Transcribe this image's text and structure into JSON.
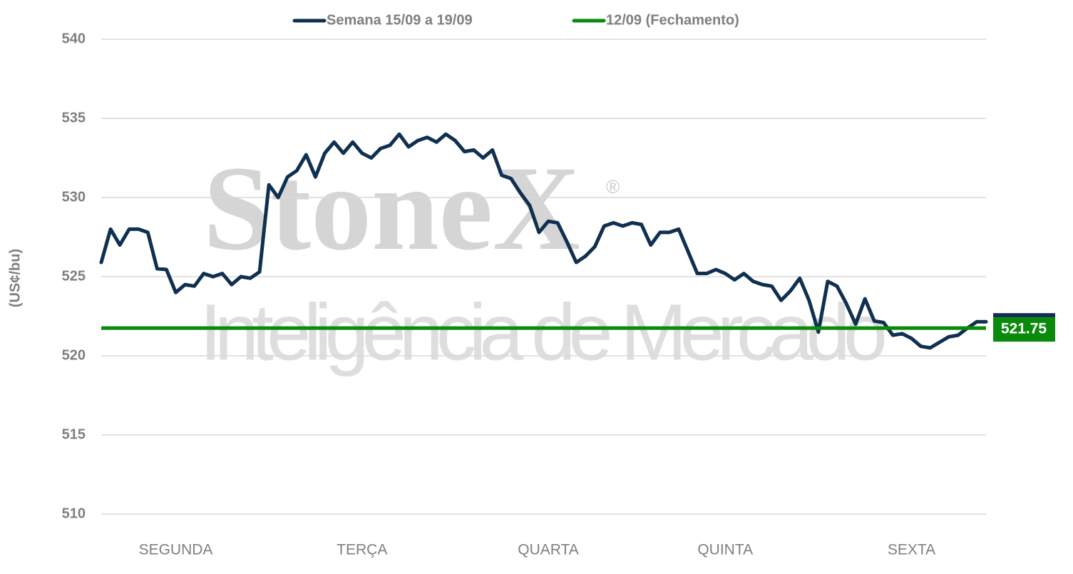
{
  "chart_data": {
    "type": "line",
    "y_label": "(US¢/bu)",
    "watermark": {
      "brand": "StoneX",
      "mark": "®",
      "tagline": "Inteligência de Mercado"
    },
    "categories": [
      null,
      null,
      null,
      null,
      null,
      null,
      null,
      null,
      "SEGUNDA",
      null,
      null,
      null,
      null,
      null,
      null,
      null,
      null,
      null,
      null,
      null,
      null,
      null,
      null,
      null,
      null,
      null,
      null,
      null,
      "TERÇA",
      null,
      null,
      null,
      null,
      null,
      null,
      null,
      null,
      null,
      null,
      null,
      null,
      null,
      null,
      null,
      null,
      null,
      null,
      null,
      "QUARTA",
      null,
      null,
      null,
      null,
      null,
      null,
      null,
      null,
      null,
      null,
      null,
      null,
      null,
      null,
      null,
      null,
      null,
      null,
      "QUINTA",
      null,
      null,
      null,
      null,
      null,
      null,
      null,
      null,
      null,
      null,
      null,
      null,
      null,
      null,
      null,
      null,
      null,
      null,
      null,
      "SEXTA",
      null,
      null,
      null,
      null,
      null,
      null,
      null,
      null
    ],
    "series": [
      {
        "name": "Semana 15/09 a 19/09",
        "color": "#0f3050",
        "values": [
          525.9,
          528.0,
          527.0,
          528.0,
          528.0,
          527.8,
          525.5,
          525.45,
          524.0,
          524.5,
          524.4,
          525.2,
          525.0,
          525.2,
          524.5,
          525.0,
          524.9,
          525.3,
          530.8,
          530.0,
          531.3,
          531.7,
          532.7,
          531.3,
          532.8,
          533.5,
          532.8,
          533.5,
          532.8,
          532.5,
          533.1,
          533.3,
          534.0,
          533.2,
          533.6,
          533.8,
          533.5,
          534.0,
          533.6,
          532.9,
          533.0,
          532.5,
          533.0,
          531.4,
          531.2,
          530.3,
          529.5,
          527.8,
          528.5,
          528.4,
          527.2,
          525.9,
          526.3,
          526.9,
          528.2,
          528.4,
          528.2,
          528.4,
          528.3,
          527.0,
          527.8,
          527.8,
          528.0,
          526.6,
          525.2,
          525.2,
          525.45,
          525.2,
          524.8,
          525.2,
          524.7,
          524.5,
          524.4,
          523.5,
          524.1,
          524.9,
          523.5,
          521.5,
          524.7,
          524.4,
          523.3,
          522.0,
          523.6,
          522.2,
          522.1,
          521.3,
          521.4,
          521.1,
          520.6,
          520.5,
          520.85,
          521.2,
          521.3,
          521.75,
          522.15,
          522.15
        ]
      },
      {
        "name": "12/09 (Fechamento)",
        "color": "#0a8a0a",
        "value": 521.75
      }
    ],
    "ylim": [
      510,
      540
    ],
    "yticks": [
      510,
      515,
      520,
      525,
      530,
      535,
      540
    ],
    "grid": true
  }
}
